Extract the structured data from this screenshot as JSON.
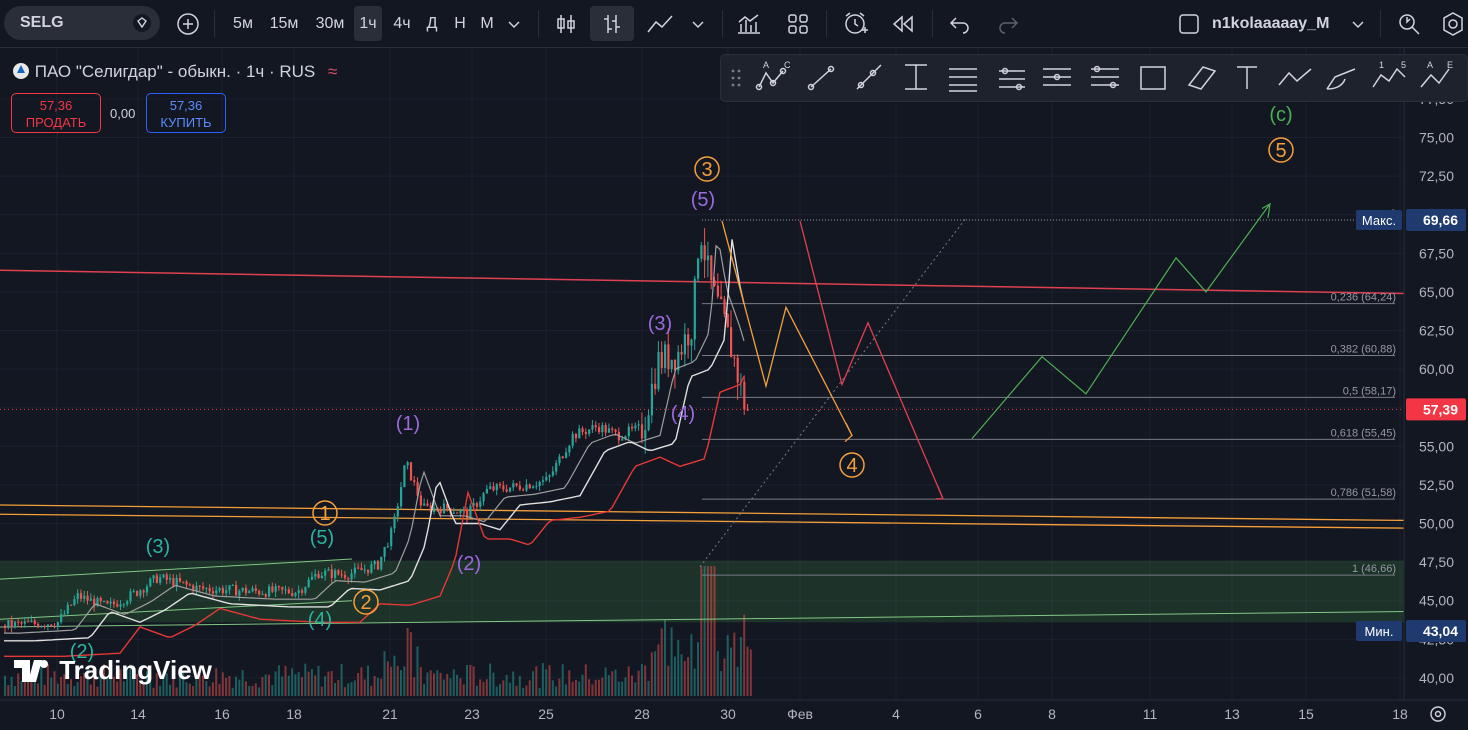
{
  "toolbar": {
    "symbol": "SELG",
    "intervals": [
      "5м",
      "15м",
      "30м",
      "1ч",
      "4ч",
      "Д",
      "Н",
      "М"
    ],
    "active_interval": "1ч",
    "user": "n1kolaaaaay_M"
  },
  "legend": {
    "title": "ПАО \"Селигдар\" - обыкн. · 1ч · RUS",
    "sell_price": "57,36",
    "sell_label": "ПРОДАТЬ",
    "spread": "0,00",
    "buy_price": "57,36",
    "buy_label": "КУПИТЬ"
  },
  "branding": {
    "logo_text": "TradingView"
  },
  "colors": {
    "up": "#26a69a",
    "down": "#ef5350",
    "background": "#131722",
    "orange": "#f59f3a",
    "purple": "#9c6ade",
    "teal": "#2bb3a0",
    "green": "#4caf50"
  },
  "chart_data": {
    "type": "candlestick",
    "x_ticks": [
      "10",
      "14",
      "16",
      "18",
      "21",
      "23",
      "25",
      "28",
      "30",
      "Фев",
      "4",
      "6",
      "8",
      "11",
      "13",
      "15",
      "18"
    ],
    "y_ticks": [
      "40,00",
      "42,50",
      "45,00",
      "47,50",
      "50,00",
      "52,50",
      "55,00",
      "57,50",
      "60,00",
      "62,50",
      "65,00",
      "67,50",
      "70,00",
      "72,50",
      "75,00",
      "77,50"
    ],
    "ylim": [
      38.5,
      78.5
    ],
    "last_price": "57,39",
    "max_label": "Макс.",
    "max_value": "69,66",
    "min_label": "Мин.",
    "min_value": "43,04",
    "fib_levels": [
      {
        "label": "0",
        "value": 69.66
      },
      {
        "label": "0,236 (64,24)",
        "value": 64.24
      },
      {
        "label": "0,382 (60,88)",
        "value": 60.88
      },
      {
        "label": "0,5 (58,17)",
        "value": 58.17
      },
      {
        "label": "0,618 (55,45)",
        "value": 55.45
      },
      {
        "label": "0,786 (51,58)",
        "value": 51.58
      },
      {
        "label": "1 (46,66)",
        "value": 46.66
      }
    ],
    "wave_labels": [
      {
        "text": "(2)",
        "color": "teal"
      },
      {
        "text": "(3)",
        "color": "teal"
      },
      {
        "text": "(4)",
        "color": "teal"
      },
      {
        "text": "(5)",
        "color": "teal"
      },
      {
        "text": "1",
        "color": "orange",
        "circle": true
      },
      {
        "text": "2",
        "color": "orange",
        "circle": true
      },
      {
        "text": "(1)",
        "color": "purple"
      },
      {
        "text": "(2)",
        "color": "purple"
      },
      {
        "text": "(3)",
        "color": "purple"
      },
      {
        "text": "(4)",
        "color": "purple"
      },
      {
        "text": "(5)",
        "color": "purple"
      },
      {
        "text": "3",
        "color": "orange",
        "circle": true
      },
      {
        "text": "4",
        "color": "orange",
        "circle": true
      },
      {
        "text": "5",
        "color": "orange",
        "circle": true
      },
      {
        "text": "(c)",
        "color": "green"
      }
    ]
  }
}
